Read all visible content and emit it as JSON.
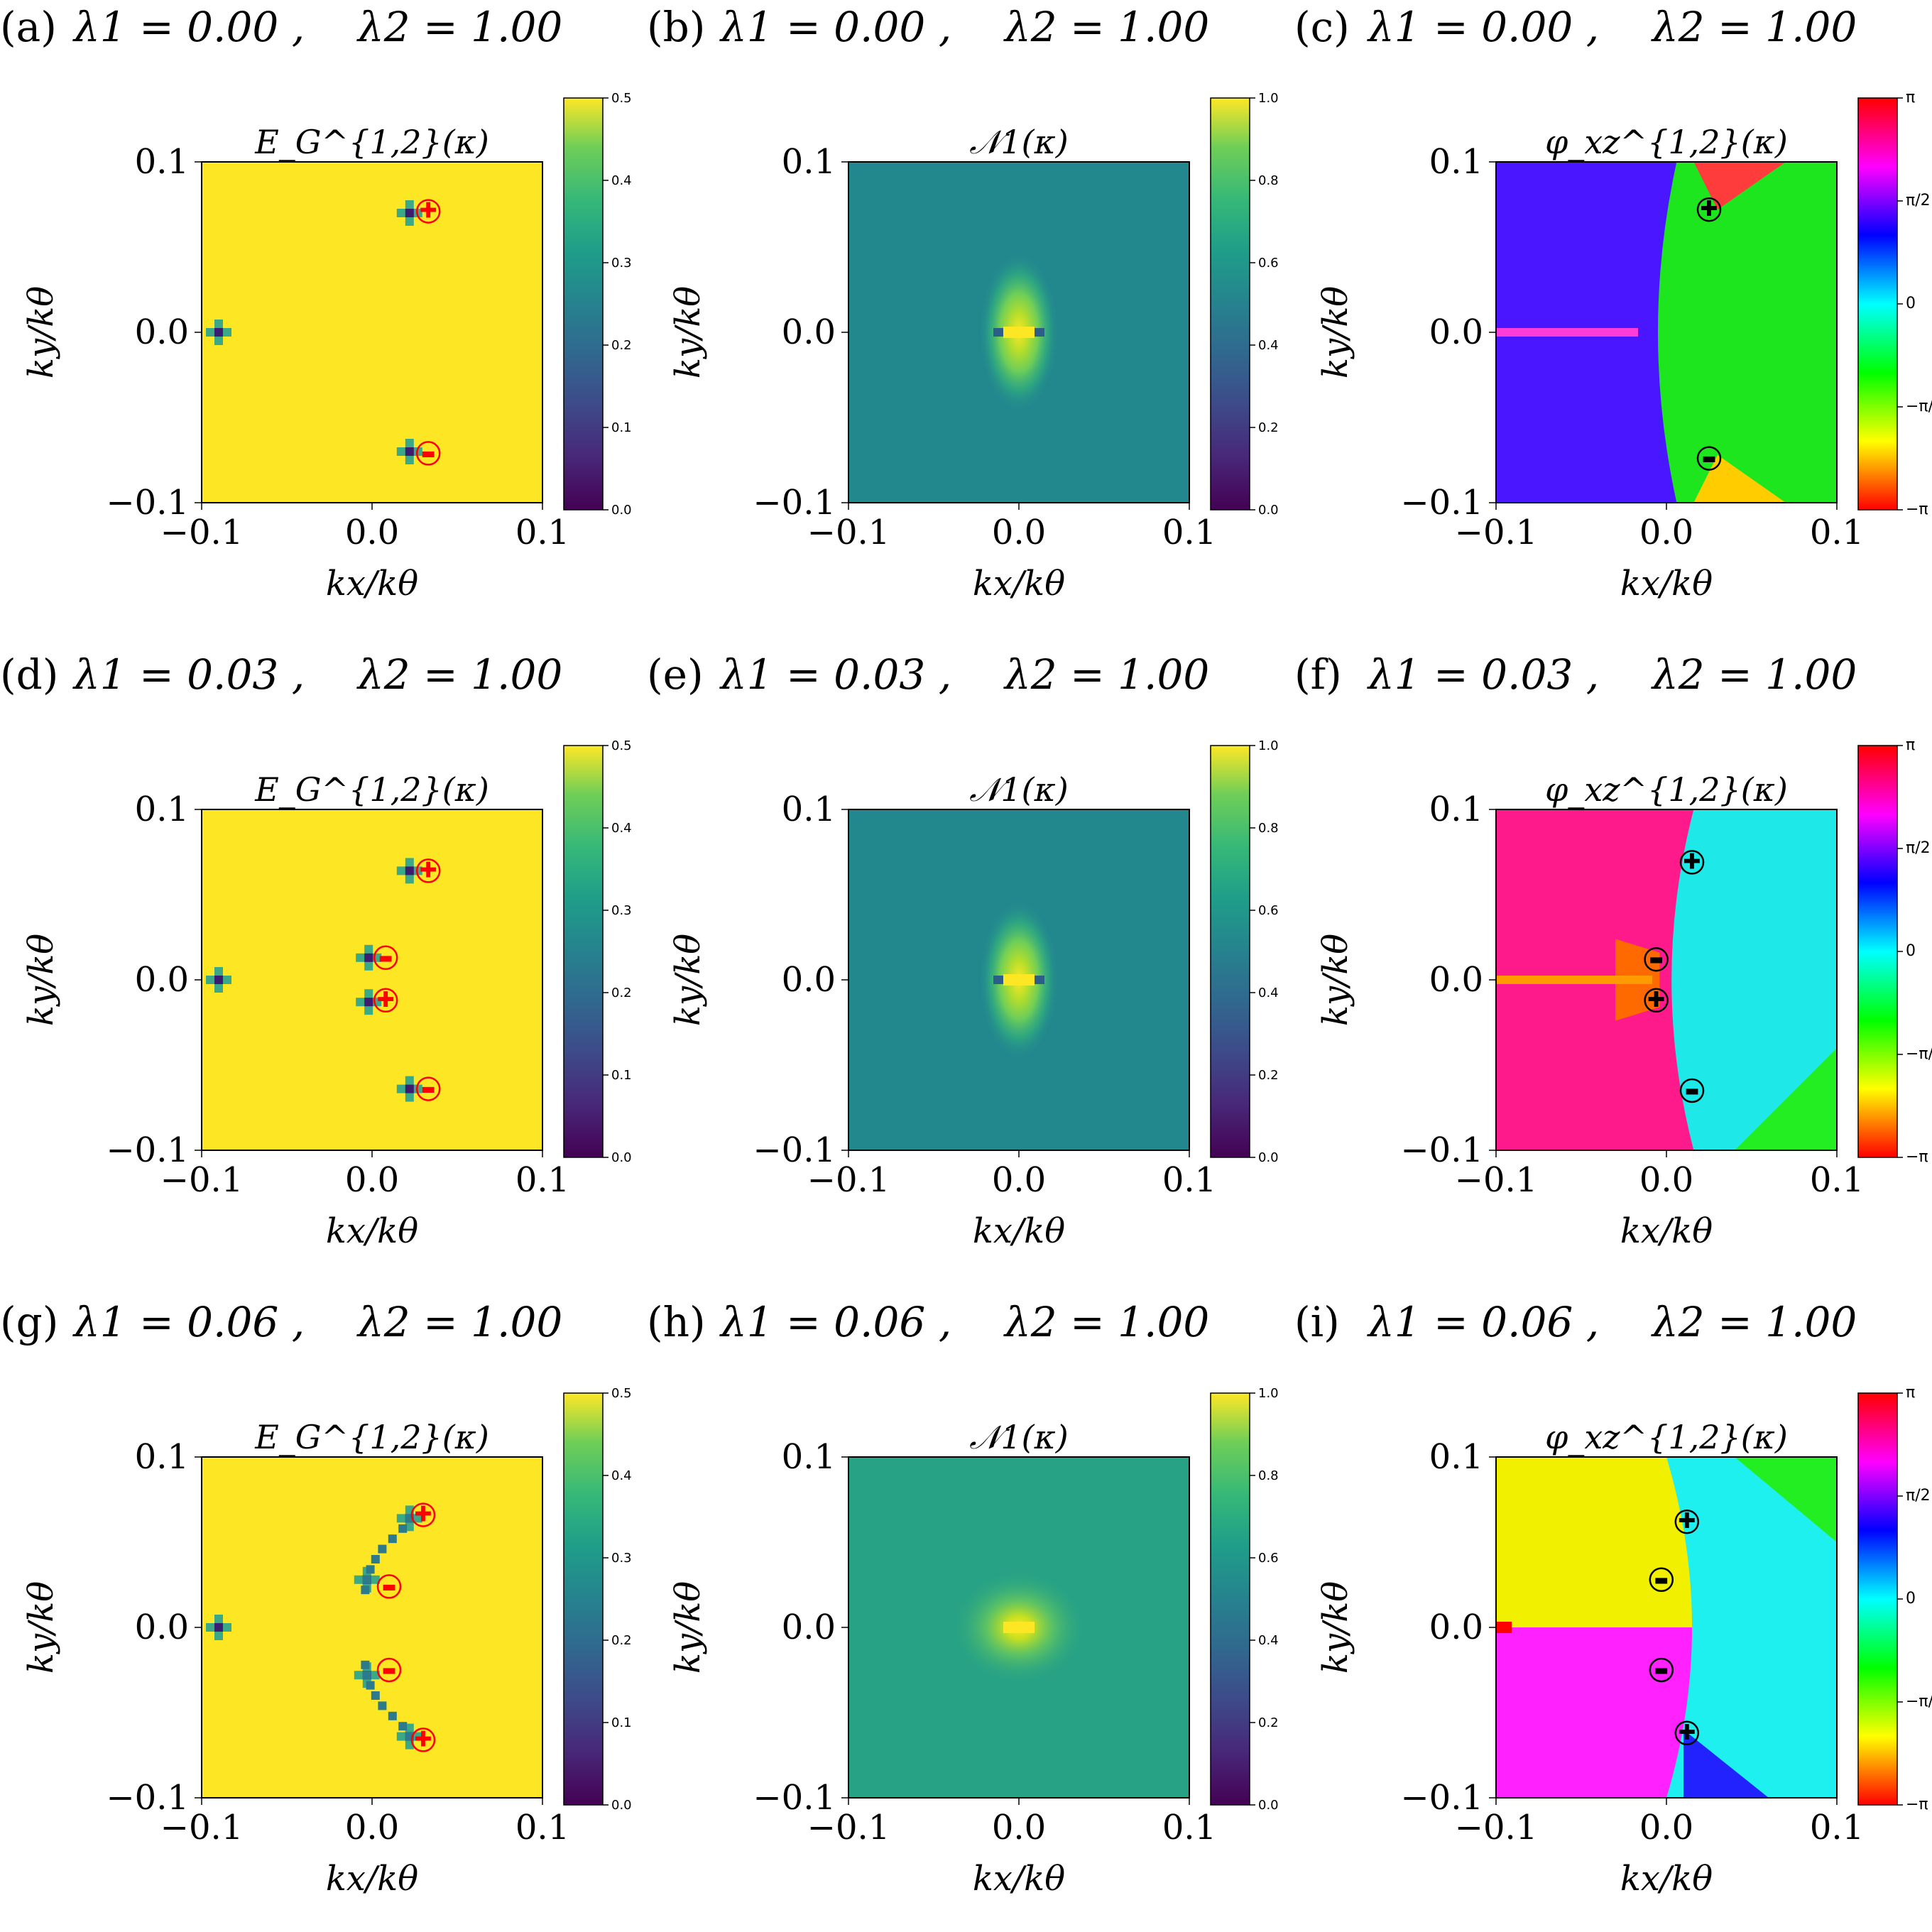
{
  "figure": {
    "panel_headers": [
      {
        "letter": "(a)",
        "lambda1": "λ1 = 0.00 ,",
        "lambda2": "λ2 = 1.00"
      },
      {
        "letter": "(b)",
        "lambda1": "λ1 = 0.00 ,",
        "lambda2": "λ2 = 1.00"
      },
      {
        "letter": "(c)",
        "lambda1": "λ1 = 0.00 ,",
        "lambda2": "λ2 = 1.00"
      },
      {
        "letter": "(d)",
        "lambda1": "λ1 = 0.03 ,",
        "lambda2": "λ2 = 1.00"
      },
      {
        "letter": "(e)",
        "lambda1": "λ1 = 0.03 ,",
        "lambda2": "λ2 = 1.00"
      },
      {
        "letter": "(f)",
        "lambda1": "λ1 = 0.03 ,",
        "lambda2": "λ2 = 1.00"
      },
      {
        "letter": "(g)",
        "lambda1": "λ1 = 0.06 ,",
        "lambda2": "λ2 = 1.00"
      },
      {
        "letter": "(h)",
        "lambda1": "λ1 = 0.06 ,",
        "lambda2": "λ2 = 1.00"
      },
      {
        "letter": "(i)",
        "lambda1": "λ1 = 0.06 ,",
        "lambda2": "λ2 = 1.00"
      }
    ],
    "column_titles": [
      "E_G^{1,2}(κ)",
      "𝒩1(κ)",
      "φ_xz^{1,2}(κ)"
    ],
    "xlabel": "kx/kθ",
    "ylabel": "ky/kθ",
    "axis_ticks": [
      "−0.1",
      "0.0",
      "0.1"
    ]
  },
  "chart_data": [
    {
      "type": "heatmap",
      "panel": "a",
      "title": "E_G^{1,2}(κ)",
      "lambda1": 0.0,
      "lambda2": 1.0,
      "xlim": [
        -0.1,
        0.1
      ],
      "ylim": [
        -0.1,
        0.1
      ],
      "colorbar": {
        "min": 0.0,
        "max": 0.5,
        "ticks": [
          "0.0",
          "0.1",
          "0.2",
          "0.3",
          "0.4",
          "0.5"
        ]
      },
      "dips": [
        {
          "x": -0.09,
          "y": 0.0
        },
        {
          "x": 0.022,
          "y": 0.07
        },
        {
          "x": 0.022,
          "y": -0.07
        }
      ],
      "vortices": [
        {
          "x": 0.033,
          "y": 0.071,
          "charge": "+"
        },
        {
          "x": 0.033,
          "y": -0.071,
          "charge": "−"
        }
      ]
    },
    {
      "type": "heatmap",
      "panel": "b",
      "title": "𝒩1(κ)",
      "lambda1": 0.0,
      "lambda2": 1.0,
      "xlim": [
        -0.1,
        0.1
      ],
      "ylim": [
        -0.1,
        0.1
      ],
      "colorbar": {
        "min": 0.0,
        "max": 1.0,
        "ticks": [
          "0.0",
          "0.2",
          "0.4",
          "0.6",
          "0.8",
          "1.0"
        ]
      },
      "background": 0.5,
      "peak": 1.0
    },
    {
      "type": "heatmap",
      "panel": "c",
      "title": "φ_xz^{1,2}(κ)",
      "lambda1": 0.0,
      "lambda2": 1.0,
      "xlim": [
        -0.1,
        0.1
      ],
      "ylim": [
        -0.1,
        0.1
      ],
      "colorbar": {
        "min": "−π",
        "max": "π",
        "ticks": [
          "−π",
          "−π/2",
          "0",
          "π/2",
          "π"
        ]
      },
      "vortices": [
        {
          "x": 0.025,
          "y": 0.072,
          "charge": "+"
        },
        {
          "x": 0.025,
          "y": -0.074,
          "charge": "−"
        }
      ]
    },
    {
      "type": "heatmap",
      "panel": "d",
      "title": "E_G^{1,2}(κ)",
      "lambda1": 0.03,
      "lambda2": 1.0,
      "xlim": [
        -0.1,
        0.1
      ],
      "ylim": [
        -0.1,
        0.1
      ],
      "colorbar": {
        "min": 0.0,
        "max": 0.5,
        "ticks": [
          "0.0",
          "0.1",
          "0.2",
          "0.3",
          "0.4",
          "0.5"
        ]
      },
      "dips": [
        {
          "x": -0.09,
          "y": 0.0
        },
        {
          "x": 0.022,
          "y": 0.064
        },
        {
          "x": 0.022,
          "y": -0.064
        },
        {
          "x": -0.002,
          "y": 0.013
        },
        {
          "x": -0.002,
          "y": -0.013
        }
      ],
      "vortices": [
        {
          "x": 0.033,
          "y": 0.064,
          "charge": "+"
        },
        {
          "x": 0.008,
          "y": 0.013,
          "charge": "−"
        },
        {
          "x": 0.008,
          "y": -0.012,
          "charge": "+"
        },
        {
          "x": 0.033,
          "y": -0.064,
          "charge": "−"
        }
      ]
    },
    {
      "type": "heatmap",
      "panel": "e",
      "title": "𝒩1(κ)",
      "lambda1": 0.03,
      "lambda2": 1.0,
      "xlim": [
        -0.1,
        0.1
      ],
      "ylim": [
        -0.1,
        0.1
      ],
      "colorbar": {
        "min": 0.0,
        "max": 1.0,
        "ticks": [
          "0.0",
          "0.2",
          "0.4",
          "0.6",
          "0.8",
          "1.0"
        ]
      },
      "background": 0.5,
      "peak": 1.0
    },
    {
      "type": "heatmap",
      "panel": "f",
      "title": "φ_xz^{1,2}(κ)",
      "lambda1": 0.03,
      "lambda2": 1.0,
      "xlim": [
        -0.1,
        0.1
      ],
      "ylim": [
        -0.1,
        0.1
      ],
      "colorbar": {
        "min": "−π",
        "max": "π",
        "ticks": [
          "−π",
          "−π/2",
          "0",
          "π/2",
          "π"
        ]
      },
      "vortices": [
        {
          "x": 0.015,
          "y": 0.069,
          "charge": "+"
        },
        {
          "x": -0.006,
          "y": 0.012,
          "charge": "−"
        },
        {
          "x": -0.006,
          "y": -0.012,
          "charge": "+"
        },
        {
          "x": 0.015,
          "y": -0.065,
          "charge": "−"
        }
      ]
    },
    {
      "type": "heatmap",
      "panel": "g",
      "title": "E_G^{1,2}(κ)",
      "lambda1": 0.06,
      "lambda2": 1.0,
      "xlim": [
        -0.1,
        0.1
      ],
      "ylim": [
        -0.1,
        0.1
      ],
      "colorbar": {
        "min": 0.0,
        "max": 0.5,
        "ticks": [
          "0.0",
          "0.1",
          "0.2",
          "0.3",
          "0.4",
          "0.5"
        ]
      },
      "dips": [
        {
          "x": -0.09,
          "y": 0.0
        },
        {
          "x": 0.022,
          "y": 0.064
        },
        {
          "x": -0.003,
          "y": 0.028
        },
        {
          "x": -0.003,
          "y": -0.028
        },
        {
          "x": 0.022,
          "y": -0.064
        }
      ],
      "vortices": [
        {
          "x": 0.03,
          "y": 0.066,
          "charge": "+"
        },
        {
          "x": 0.01,
          "y": 0.024,
          "charge": "−"
        },
        {
          "x": 0.01,
          "y": -0.025,
          "charge": "−"
        },
        {
          "x": 0.03,
          "y": -0.066,
          "charge": "+"
        }
      ]
    },
    {
      "type": "heatmap",
      "panel": "h",
      "title": "𝒩1(κ)",
      "lambda1": 0.06,
      "lambda2": 1.0,
      "xlim": [
        -0.1,
        0.1
      ],
      "ylim": [
        -0.1,
        0.1
      ],
      "colorbar": {
        "min": 0.0,
        "max": 1.0,
        "ticks": [
          "0.0",
          "0.2",
          "0.4",
          "0.6",
          "0.8",
          "1.0"
        ]
      },
      "background": 0.55,
      "peak": 0.9
    },
    {
      "type": "heatmap",
      "panel": "i",
      "title": "φ_xz^{1,2}(κ)",
      "lambda1": 0.06,
      "lambda2": 1.0,
      "xlim": [
        -0.1,
        0.1
      ],
      "ylim": [
        -0.1,
        0.1
      ],
      "colorbar": {
        "min": "−π",
        "max": "π",
        "ticks": [
          "−π",
          "−π/2",
          "0",
          "π/2",
          "π"
        ]
      },
      "vortices": [
        {
          "x": 0.012,
          "y": 0.062,
          "charge": "+"
        },
        {
          "x": -0.003,
          "y": 0.028,
          "charge": "−"
        },
        {
          "x": -0.003,
          "y": -0.025,
          "charge": "−"
        },
        {
          "x": 0.012,
          "y": -0.062,
          "charge": "+"
        }
      ]
    }
  ],
  "colors": {
    "yellow": "#fde725",
    "teal": "#21918c",
    "purple": "#440154",
    "marker_red": "#ff0000",
    "marker_black": "#000000"
  }
}
